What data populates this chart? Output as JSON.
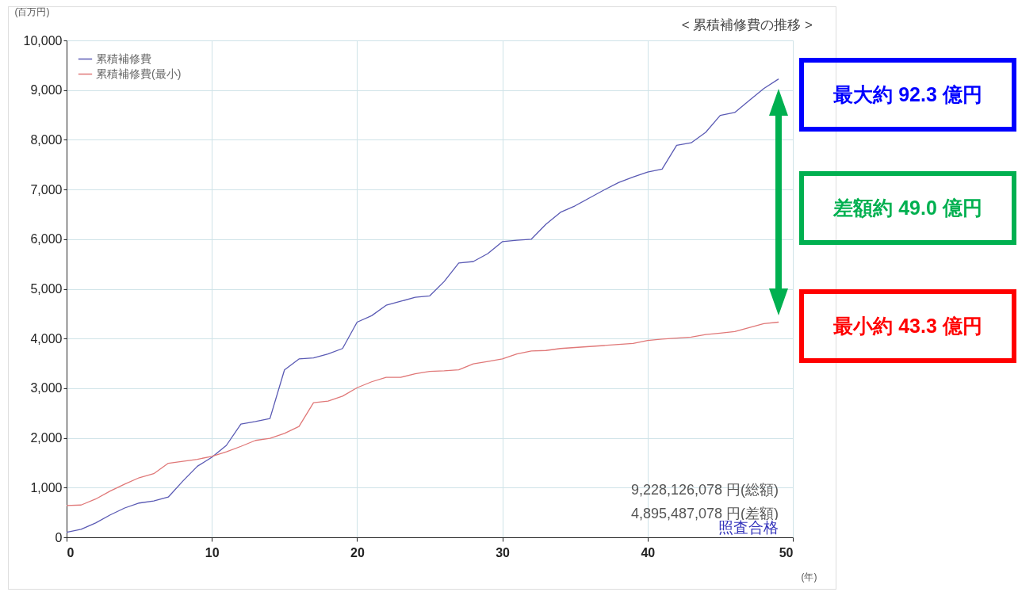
{
  "chart_data": {
    "type": "line",
    "title": "< 累積補修費の推移 >",
    "ylabel": "(百万円)",
    "xlabel": "(年)",
    "x": [
      0,
      1,
      2,
      3,
      4,
      5,
      6,
      7,
      8,
      9,
      10,
      11,
      12,
      13,
      14,
      15,
      16,
      17,
      18,
      19,
      20,
      21,
      22,
      23,
      24,
      25,
      26,
      27,
      28,
      29,
      30,
      31,
      32,
      33,
      34,
      35,
      36,
      37,
      38,
      39,
      40,
      41,
      42,
      43,
      44,
      45,
      46,
      47,
      48,
      49
    ],
    "series": [
      {
        "name": "累積補修費",
        "color": "#5a5ab4",
        "values": [
          100,
          160,
          290,
          450,
          590,
          690,
          730,
          810,
          1130,
          1430,
          1610,
          1850,
          2280,
          2330,
          2390,
          3370,
          3590,
          3610,
          3690,
          3800,
          4330,
          4460,
          4670,
          4750,
          4830,
          4860,
          5150,
          5520,
          5550,
          5710,
          5950,
          5980,
          6000,
          6300,
          6540,
          6670,
          6830,
          6990,
          7140,
          7250,
          7350,
          7410,
          7890,
          7940,
          8150,
          8490,
          8550,
          8790,
          9030,
          9220
        ]
      },
      {
        "name": "累積補修費(最小)",
        "color": "#e07878",
        "values": [
          640,
          650,
          770,
          930,
          1070,
          1200,
          1280,
          1490,
          1530,
          1570,
          1630,
          1720,
          1830,
          1950,
          1990,
          2090,
          2230,
          2710,
          2740,
          2840,
          3010,
          3130,
          3220,
          3220,
          3290,
          3340,
          3350,
          3370,
          3490,
          3540,
          3590,
          3690,
          3750,
          3760,
          3800,
          3820,
          3840,
          3860,
          3880,
          3900,
          3960,
          3990,
          4010,
          4030,
          4080,
          4110,
          4140,
          4220,
          4300,
          4330
        ]
      }
    ],
    "xlim": [
      0,
      50
    ],
    "xticks": [
      0,
      10,
      20,
      30,
      40,
      50
    ],
    "ylim": [
      0,
      10000
    ],
    "yticks": [
      0,
      {
        "value": 1000,
        "label": "1,000"
      },
      {
        "value": 2000,
        "label": "2,000"
      },
      {
        "value": 3000,
        "label": "3,000"
      },
      {
        "value": 4000,
        "label": "4,000"
      },
      {
        "value": 5000,
        "label": "5,000"
      },
      {
        "value": 6000,
        "label": "6,000"
      },
      {
        "value": 7000,
        "label": "7,000"
      },
      {
        "value": 8000,
        "label": "8,000"
      },
      {
        "value": 9000,
        "label": "9,000"
      },
      {
        "value": 10000,
        "label": "10,000"
      }
    ],
    "grid": true,
    "legend": "top left",
    "marker": "none",
    "line_style": "solid",
    "annotations": [
      "最大約 92.3 億円",
      "差額約 49.0 億円",
      "最小約 43.3 億円",
      "9,228,126,078 円(総額)",
      "4,895,487,078 円(差額)",
      "照査合格"
    ]
  }
}
